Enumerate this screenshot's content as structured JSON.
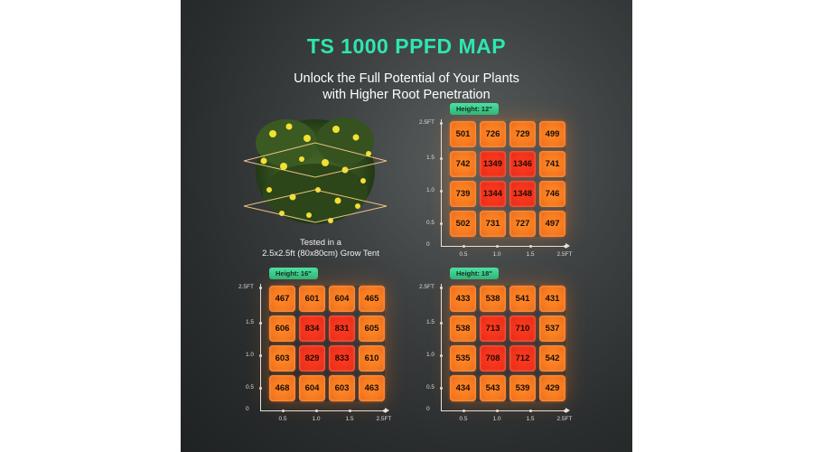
{
  "title": "TS 1000 PPFD MAP",
  "subtitle_lines": [
    "Unlock the Full Potential of Your Plants",
    "with Higher Root Penetration"
  ],
  "caption_lines": [
    "Tested in a",
    "2.5x2.5ft (80x80cm) Grow Tent"
  ],
  "axis": {
    "y_ticks": [
      "2.5FT",
      "1.5",
      "1.0",
      "0.5"
    ],
    "x_ticks": [
      "0.5",
      "1.0",
      "1.5",
      "2.5FT"
    ],
    "origin": "0"
  },
  "colors": {
    "title": "#2ee6b0",
    "badge": "#34cf90",
    "edge_cell": "#f77a1f",
    "center_cell": "#f2331c"
  },
  "maps": [
    {
      "height_label": "Height: 12\"",
      "rows": [
        [
          "501",
          "726",
          "729",
          "499"
        ],
        [
          "742",
          "1349",
          "1346",
          "741"
        ],
        [
          "739",
          "1344",
          "1348",
          "746"
        ],
        [
          "502",
          "731",
          "727",
          "497"
        ]
      ]
    },
    {
      "height_label": "Height: 16\"",
      "rows": [
        [
          "467",
          "601",
          "604",
          "465"
        ],
        [
          "606",
          "834",
          "831",
          "605"
        ],
        [
          "603",
          "829",
          "833",
          "610"
        ],
        [
          "468",
          "604",
          "603",
          "463"
        ]
      ]
    },
    {
      "height_label": "Height: 18\"",
      "rows": [
        [
          "433",
          "538",
          "541",
          "431"
        ],
        [
          "538",
          "713",
          "710",
          "537"
        ],
        [
          "535",
          "708",
          "712",
          "542"
        ],
        [
          "434",
          "543",
          "539",
          "429"
        ]
      ]
    }
  ]
}
